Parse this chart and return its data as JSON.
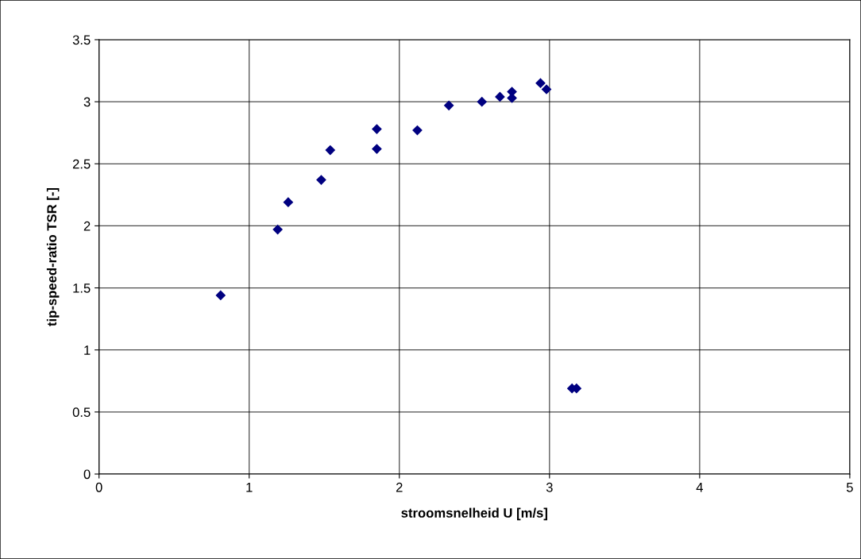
{
  "chart_data": {
    "type": "scatter",
    "xlabel": "stroomsnelheid U [m/s]",
    "ylabel": "tip-speed-ratio TSR [-]",
    "x": [
      0.81,
      1.19,
      1.26,
      1.48,
      1.54,
      1.85,
      1.85,
      2.12,
      2.33,
      2.55,
      2.67,
      2.75,
      2.75,
      2.94,
      2.98,
      3.15,
      3.18
    ],
    "series": [
      {
        "color": "#000080",
        "values": [
          1.44,
          1.97,
          2.19,
          2.37,
          2.61,
          2.62,
          2.78,
          2.77,
          2.97,
          3.0,
          3.04,
          3.08,
          3.03,
          3.15,
          3.1,
          0.69,
          0.69
        ]
      }
    ],
    "xlim": [
      0,
      5
    ],
    "xticks": [
      0,
      1,
      2,
      3,
      4,
      5
    ],
    "ylim": [
      0,
      3.5
    ],
    "yticks": [
      0,
      0.5,
      1,
      1.5,
      2,
      2.5,
      3,
      3.5
    ],
    "grid": true,
    "marker": "diamond"
  }
}
